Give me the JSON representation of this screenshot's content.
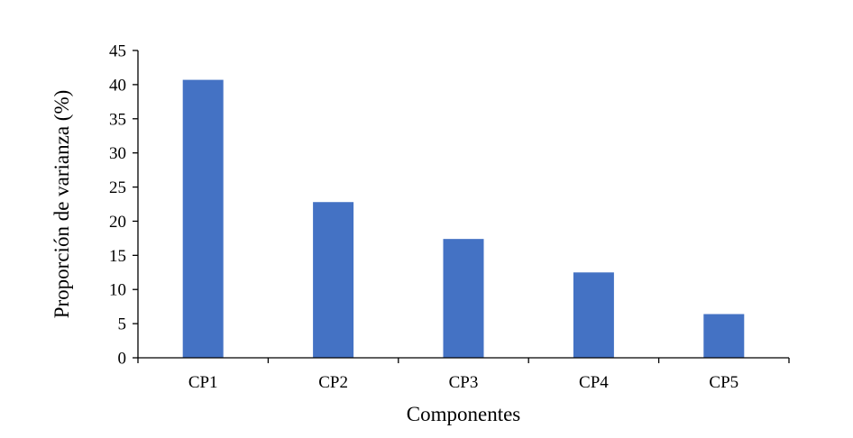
{
  "chart_data": {
    "type": "bar",
    "categories": [
      "CP1",
      "CP2",
      "CP3",
      "CP4",
      "CP5"
    ],
    "values": [
      40.7,
      22.8,
      17.4,
      12.5,
      6.4
    ],
    "title": "",
    "xlabel": "Componentes",
    "ylabel": "Proporción de varianza (%)",
    "ylim": [
      0,
      45
    ],
    "yticks": [
      "0",
      "5",
      "10",
      "15",
      "20",
      "25",
      "30",
      "35",
      "40",
      "45"
    ],
    "grid": false,
    "legend": "none",
    "bar_color": "#4472C4"
  }
}
